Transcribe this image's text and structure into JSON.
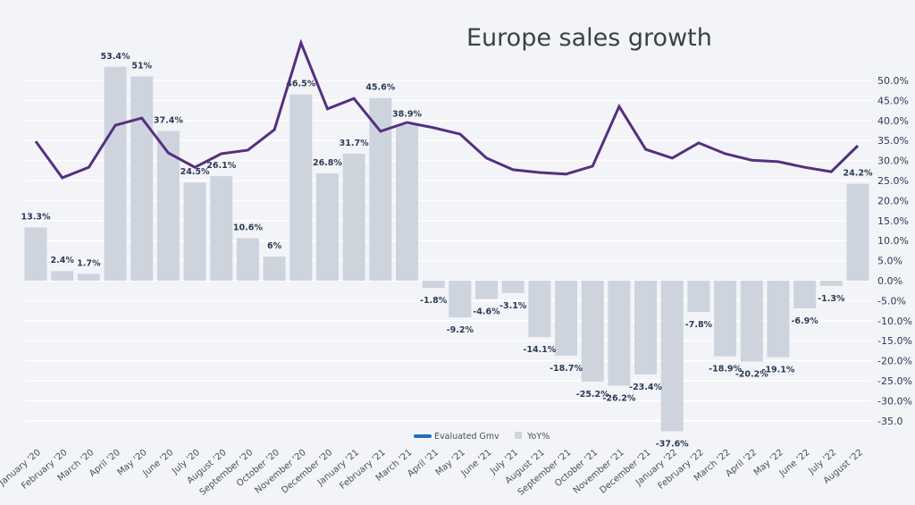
{
  "chart_data": {
    "type": "bar+line",
    "title": "Europe sales growth",
    "xlabel": "",
    "ylabel": "",
    "ylim": [
      -35,
      50
    ],
    "y_ticks": [
      "50.0%",
      "45.0%",
      "40.0%",
      "35.0%",
      "30.0%",
      "25.0%",
      "20.0%",
      "15.0%",
      "10.0%",
      "5.0%",
      "0.0%",
      "-5.0%",
      "-10.0%",
      "-15.0%",
      "-20.0%",
      "-25.0%",
      "-30.0%",
      "-35.0"
    ],
    "y_tick_values": [
      50,
      45,
      40,
      35,
      30,
      25,
      20,
      15,
      10,
      5,
      0,
      -5,
      -10,
      -15,
      -20,
      -25,
      -30,
      -35
    ],
    "y_axis_position": "right",
    "grid": true,
    "legend_position": "bottom-center",
    "categories": [
      "January '20",
      "February '20",
      "March '20",
      "April '20",
      "May '20",
      "June '20",
      "July '20",
      "August '20",
      "September '20",
      "October '20",
      "November '20",
      "December '20",
      "January '21",
      "February '21",
      "March '21",
      "April '21",
      "May '21",
      "June '21",
      "July '21",
      "August '21",
      "September '21",
      "October '21",
      "November '21",
      "December '21",
      "January '22",
      "February '22",
      "March '22",
      "April '22",
      "May '22",
      "June '22",
      "July '22",
      "August '22"
    ],
    "series": [
      {
        "name": "Evaluated Gmv",
        "type": "line",
        "color": "#55307f",
        "legend_color": "#1f6fb5",
        "values": [
          34.8,
          25.7,
          28.3,
          38.8,
          40.6,
          31.9,
          28.3,
          31.7,
          32.6,
          37.7,
          59.4,
          42.9,
          45.5,
          37.3,
          39.5,
          38.2,
          36.6,
          30.6,
          27.7,
          27.0,
          26.6,
          28.6,
          43.5,
          32.8,
          30.6,
          34.4,
          31.7,
          30.1,
          29.7,
          28.3,
          27.2,
          33.7
        ]
      },
      {
        "name": "YoY%",
        "type": "bar",
        "color": "#ced4de",
        "values": [
          13.3,
          2.4,
          1.7,
          53.4,
          51,
          37.4,
          24.5,
          26.1,
          10.6,
          6,
          46.5,
          26.8,
          31.7,
          45.6,
          38.9,
          -1.8,
          -9.2,
          -4.6,
          -3.1,
          -14.1,
          -18.7,
          -25.2,
          -26.2,
          -23.4,
          -37.6,
          -7.8,
          -18.9,
          -20.2,
          -19.1,
          -6.9,
          -1.3,
          24.2
        ],
        "labels": [
          "13.3%",
          "2.4%",
          "1.7%",
          "53.4%",
          "51%",
          "37.4%",
          "24.5%",
          "26.1%",
          "10.6%",
          "6%",
          "46.5%",
          "26.8%",
          "31.7%",
          "45.6%",
          "38.9%",
          "-1.8%",
          "-9.2%",
          "-4.6%",
          "-3.1%",
          "-14.1%",
          "-18.7%",
          "-25.2%",
          "-26.2%",
          "-23.4%",
          "-37.6%",
          "-7.8%",
          "-18.9%",
          "-20.2%",
          "-19.1%",
          "-6.9%",
          "-1.3%",
          "24.2%"
        ]
      }
    ]
  },
  "legend": {
    "items": [
      {
        "label": "Evaluated Gmv",
        "color": "#1f6fb5",
        "shape": "line"
      },
      {
        "label": "YoY%",
        "color": "#ced4de",
        "shape": "square"
      }
    ]
  }
}
